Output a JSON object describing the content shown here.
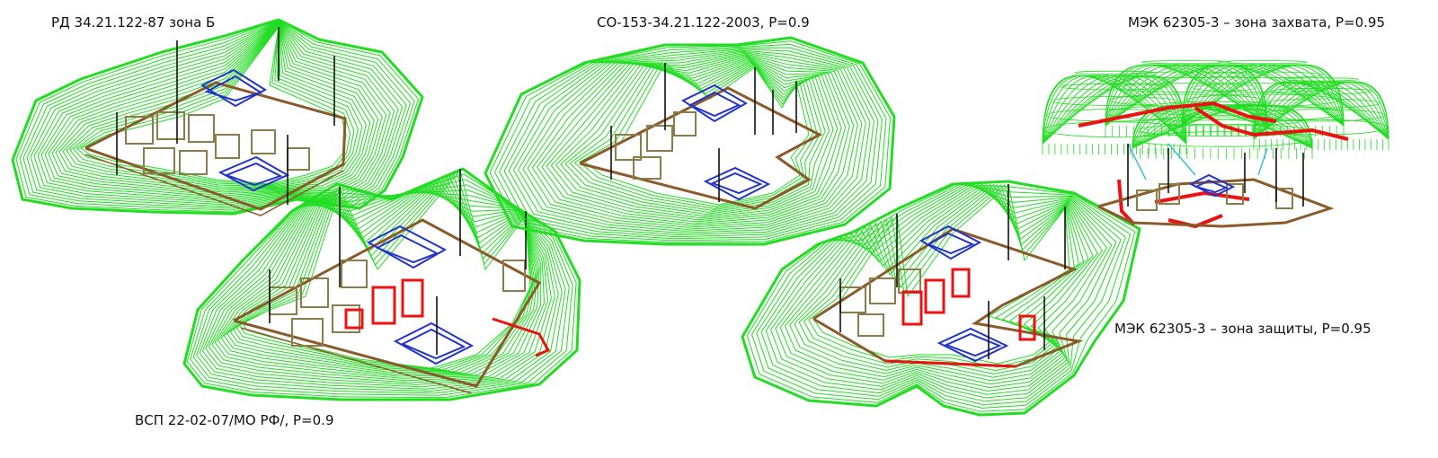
{
  "labels": {
    "rd_zone_b": "РД 34.21.122-87 зона Б",
    "vsp": "ВСП 22-02-07/МО РФ/, P=0.9",
    "so_153": "СО-153-34.21.122-2003, P=0.9",
    "iec_capture": "МЭК 62305-3 – зона захвата, P=0.95",
    "iec_protection": "МЭК 62305-3 – зона защиты, P=0.95"
  },
  "colors": {
    "zone_contour": "#22dd22",
    "fence": "#8b5a2b",
    "equipment": "#8b7d4a",
    "building": "#2233cc",
    "rods": "#111111",
    "highlight": "#ee1111",
    "wire": "#33bbdd"
  }
}
